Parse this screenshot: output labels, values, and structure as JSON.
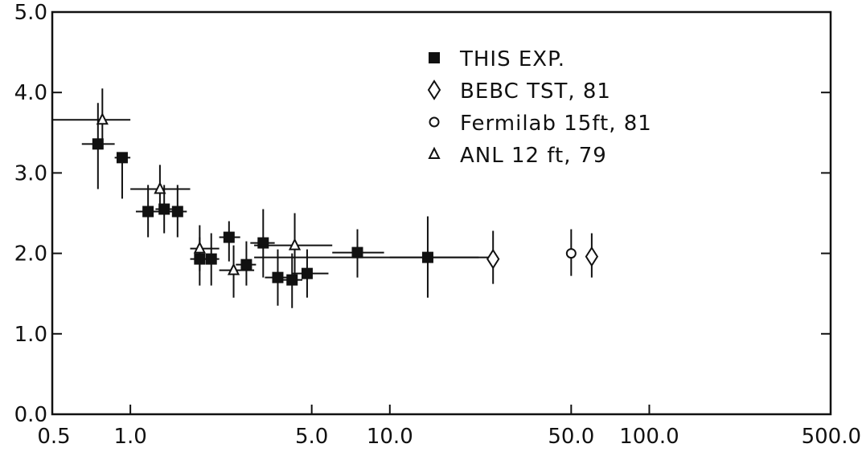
{
  "chart_data": {
    "type": "scatter",
    "title": "",
    "xlabel": "",
    "ylabel": "",
    "x_scale": "log",
    "xlim": [
      0.5,
      500.0
    ],
    "ylim": [
      0.0,
      5.0
    ],
    "grid": false,
    "legend_position": "top-right",
    "x_ticks": [
      {
        "value": 0.5,
        "label": "0.5"
      },
      {
        "value": 1.0,
        "label": "1.0"
      },
      {
        "value": 5.0,
        "label": "5.0"
      },
      {
        "value": 10.0,
        "label": "10.0"
      },
      {
        "value": 50.0,
        "label": "50.0"
      },
      {
        "value": 100.0,
        "label": "100.0"
      },
      {
        "value": 500.0,
        "label": "500.0"
      }
    ],
    "y_ticks": [
      {
        "value": 0.0,
        "label": "0.0"
      },
      {
        "value": 1.0,
        "label": "1.0"
      },
      {
        "value": 2.0,
        "label": "2.0"
      },
      {
        "value": 3.0,
        "label": "3.0"
      },
      {
        "value": 4.0,
        "label": "4.0"
      },
      {
        "value": 5.0,
        "label": "5.0"
      }
    ],
    "series": [
      {
        "name": "THIS EXP.",
        "marker": "filled-square",
        "points": [
          {
            "x": 0.75,
            "xlo": 0.65,
            "xhi": 0.87,
            "y": 3.36,
            "ylo": 2.8,
            "yhi": 3.87
          },
          {
            "x": 0.93,
            "xlo": 0.87,
            "xhi": 1.0,
            "y": 3.19,
            "ylo": 2.68,
            "yhi": 3.19
          },
          {
            "x": 1.17,
            "xlo": 1.05,
            "xhi": 1.3,
            "y": 2.52,
            "ylo": 2.2,
            "yhi": 2.85
          },
          {
            "x": 1.35,
            "xlo": 1.25,
            "xhi": 1.45,
            "y": 2.55,
            "ylo": 2.25,
            "yhi": 2.85
          },
          {
            "x": 1.52,
            "xlo": 1.4,
            "xhi": 1.65,
            "y": 2.52,
            "ylo": 2.2,
            "yhi": 2.85
          },
          {
            "x": 1.85,
            "xlo": 1.7,
            "xhi": 2.0,
            "y": 1.93,
            "ylo": 1.6,
            "yhi": 2.2
          },
          {
            "x": 2.05,
            "xlo": 1.9,
            "xhi": 2.2,
            "y": 1.93,
            "ylo": 1.6,
            "yhi": 2.25
          },
          {
            "x": 2.4,
            "xlo": 2.2,
            "xhi": 2.65,
            "y": 2.2,
            "ylo": 1.9,
            "yhi": 2.4
          },
          {
            "x": 2.8,
            "xlo": 2.55,
            "xhi": 3.05,
            "y": 1.86,
            "ylo": 1.6,
            "yhi": 2.15
          },
          {
            "x": 3.25,
            "xlo": 2.9,
            "xhi": 3.6,
            "y": 2.13,
            "ylo": 1.7,
            "yhi": 2.55
          },
          {
            "x": 3.7,
            "xlo": 3.3,
            "xhi": 4.1,
            "y": 1.7,
            "ylo": 1.35,
            "yhi": 2.05
          },
          {
            "x": 4.2,
            "xlo": 3.8,
            "xhi": 4.6,
            "y": 1.67,
            "ylo": 1.32,
            "yhi": 2.0
          },
          {
            "x": 4.8,
            "xlo": 4.2,
            "xhi": 5.8,
            "y": 1.75,
            "ylo": 1.45,
            "yhi": 2.05
          },
          {
            "x": 7.5,
            "xlo": 6.0,
            "xhi": 9.5,
            "y": 2.01,
            "ylo": 1.7,
            "yhi": 2.3
          },
          {
            "x": 14.0,
            "xlo": 10.0,
            "xhi": 24.0,
            "y": 1.95,
            "ylo": 1.45,
            "yhi": 2.46
          }
        ]
      },
      {
        "name": "BEBC TST, 81",
        "marker": "open-diamond",
        "points": [
          {
            "x": 25.0,
            "y": 1.93,
            "ylo": 1.62,
            "yhi": 2.28
          },
          {
            "x": 60.0,
            "y": 1.96,
            "ylo": 1.7,
            "yhi": 2.25
          }
        ]
      },
      {
        "name": "Fermilab 15ft, 81",
        "marker": "open-circle",
        "points": [
          {
            "x": 50.0,
            "y": 2.0,
            "ylo": 1.72,
            "yhi": 2.3
          }
        ]
      },
      {
        "name": "ANL 12 ft, 79",
        "marker": "open-triangle",
        "points": [
          {
            "x": 0.78,
            "xlo": 0.5,
            "xhi": 1.0,
            "y": 3.66,
            "ylo": 3.3,
            "yhi": 4.05
          },
          {
            "x": 1.3,
            "xlo": 1.0,
            "xhi": 1.7,
            "y": 2.8,
            "ylo": 2.5,
            "yhi": 3.1
          },
          {
            "x": 1.85,
            "xlo": 1.7,
            "xhi": 2.2,
            "y": 2.06,
            "ylo": 1.78,
            "yhi": 2.35
          },
          {
            "x": 2.5,
            "xlo": 2.2,
            "xhi": 3.0,
            "y": 1.79,
            "ylo": 1.45,
            "yhi": 2.1
          },
          {
            "x": 4.3,
            "xlo": 3.0,
            "xhi": 6.0,
            "y": 2.1,
            "ylo": 1.65,
            "yhi": 2.5
          },
          {
            "x": 8.0,
            "xlo": 3.0,
            "xhi": 22.0,
            "y": 1.95,
            "ylo": 1.95,
            "yhi": 1.95
          }
        ]
      }
    ]
  }
}
